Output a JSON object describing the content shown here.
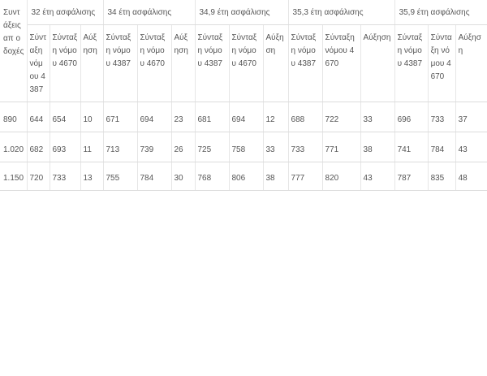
{
  "table": {
    "corner_header": "Συντάξεις απ'οδοχές",
    "corner_display": "Συντάξεις απ οδοχές",
    "groups": [
      "32 έτη ασφάλισης",
      "34 έτη ασφάλισης",
      "34,9 έτη ασφάλισης",
      "35,3 έτη ασφάλισης",
      "35,9 έτη ασφάλισης"
    ],
    "subheaders": [
      "Σύνταξη νόμου 4387",
      "Σύνταξη νόμου 4670",
      "Αύξηση",
      "Σύνταξη νόμου 4387",
      "Σύνταξη νόμου 4670",
      "Αύξηση",
      "Σύνταξη νόμου 4387",
      "Σύνταξη νόμου 4670",
      "Αύξηση",
      "Σύνταξη νόμου 4387",
      "Σύνταξη νόμου 4670",
      "Αύξηση",
      "Σύνταξη νόμου 4387",
      "Σύνταξη νόμου 4670",
      "Αύξηση"
    ],
    "rows": [
      {
        "salary": "890",
        "cells": [
          "644",
          "654",
          "10",
          "671",
          "694",
          "23",
          "681",
          "694",
          "12",
          "688",
          "722",
          "33",
          "696",
          "733",
          "37"
        ]
      },
      {
        "salary": "1.020",
        "cells": [
          "682",
          "693",
          "11",
          "713",
          "739",
          "26",
          "725",
          "758",
          "33",
          "733",
          "771",
          "38",
          "741",
          "784",
          "43"
        ]
      },
      {
        "salary": "1.150",
        "cells": [
          "720",
          "733",
          "13",
          "755",
          "784",
          "30",
          "768",
          "806",
          "38",
          "777",
          "820",
          "43",
          "787",
          "835",
          "48"
        ]
      }
    ]
  }
}
